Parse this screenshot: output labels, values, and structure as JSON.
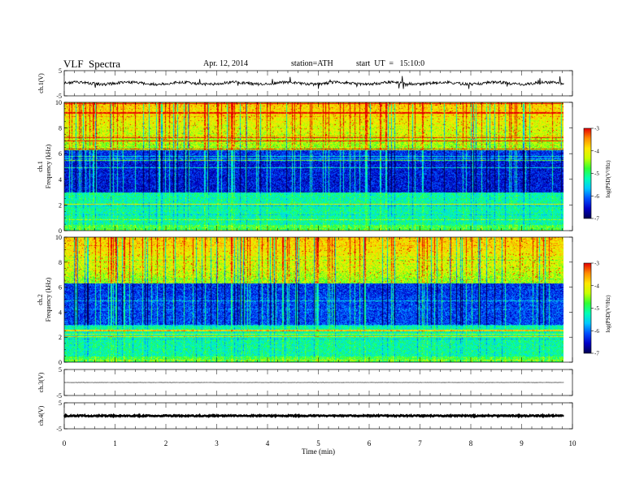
{
  "header": {
    "title": "VLF  Spectra",
    "date": "Apr. 12, 2014",
    "station": "station=ATH",
    "start": "start  UT  =   15:10:0"
  },
  "chart_data": [
    {
      "type": "line",
      "panel": "ch1-waveform",
      "ylabel": "ch.1(V)",
      "ylim": [
        -5,
        5
      ],
      "yticks": [
        "5",
        "-5"
      ],
      "series": [
        {
          "values_description": "noisy waveform around +0 V",
          "baseline": 0.0,
          "amplitude": 0.6
        }
      ]
    },
    {
      "type": "heatmap",
      "panel": "ch1-spectrogram",
      "ylabel": "ch.1 Frequency  (kHz)",
      "ylim": [
        0,
        10
      ],
      "yticks": [
        "0",
        "2",
        "4",
        "6",
        "8",
        "10"
      ],
      "colorbar": {
        "label": "log(PSD(V²/Hz)",
        "range": [
          -7,
          -3
        ],
        "ticks": [
          "-3",
          "-4",
          "-5",
          "-6",
          "-7"
        ]
      }
    },
    {
      "type": "heatmap",
      "panel": "ch2-spectrogram",
      "ylabel": "ch.2 Frequency  (kHz)",
      "ylim": [
        0,
        10
      ],
      "yticks": [
        "0",
        "2",
        "4",
        "6",
        "8",
        "10"
      ],
      "colorbar": {
        "label": "log(PSD(V²/Hz)",
        "range": [
          -7,
          -3
        ],
        "ticks": [
          "-3",
          "-4",
          "-5",
          "-6",
          "-7"
        ]
      }
    },
    {
      "type": "line",
      "panel": "ch3-waveform",
      "ylabel": "ch.3(V)",
      "ylim": [
        -5,
        5
      ],
      "yticks": [
        "5",
        "-5"
      ],
      "series": [
        {
          "baseline": 0.0,
          "amplitude": 0.05
        }
      ]
    },
    {
      "type": "line",
      "panel": "ch4-waveform",
      "ylabel": "ch.4(V)",
      "ylim": [
        -5,
        5
      ],
      "yticks": [
        "5",
        "-5"
      ],
      "series": [
        {
          "baseline": 0.0,
          "amplitude": 0.25
        }
      ]
    }
  ],
  "time_axis": {
    "label": "Time  (min)",
    "range": [
      0,
      10
    ],
    "data_end": 9.83,
    "ticks": [
      "0",
      "1",
      "2",
      "3",
      "4",
      "5",
      "6",
      "7",
      "8",
      "9",
      "10"
    ]
  },
  "colors": {
    "colormap": [
      "#000050",
      "#0000c8",
      "#0050ff",
      "#00c8ff",
      "#00ffb4",
      "#32ff32",
      "#c8ff00",
      "#ffe600",
      "#ff8c00",
      "#e60000",
      "#ffffff"
    ]
  }
}
